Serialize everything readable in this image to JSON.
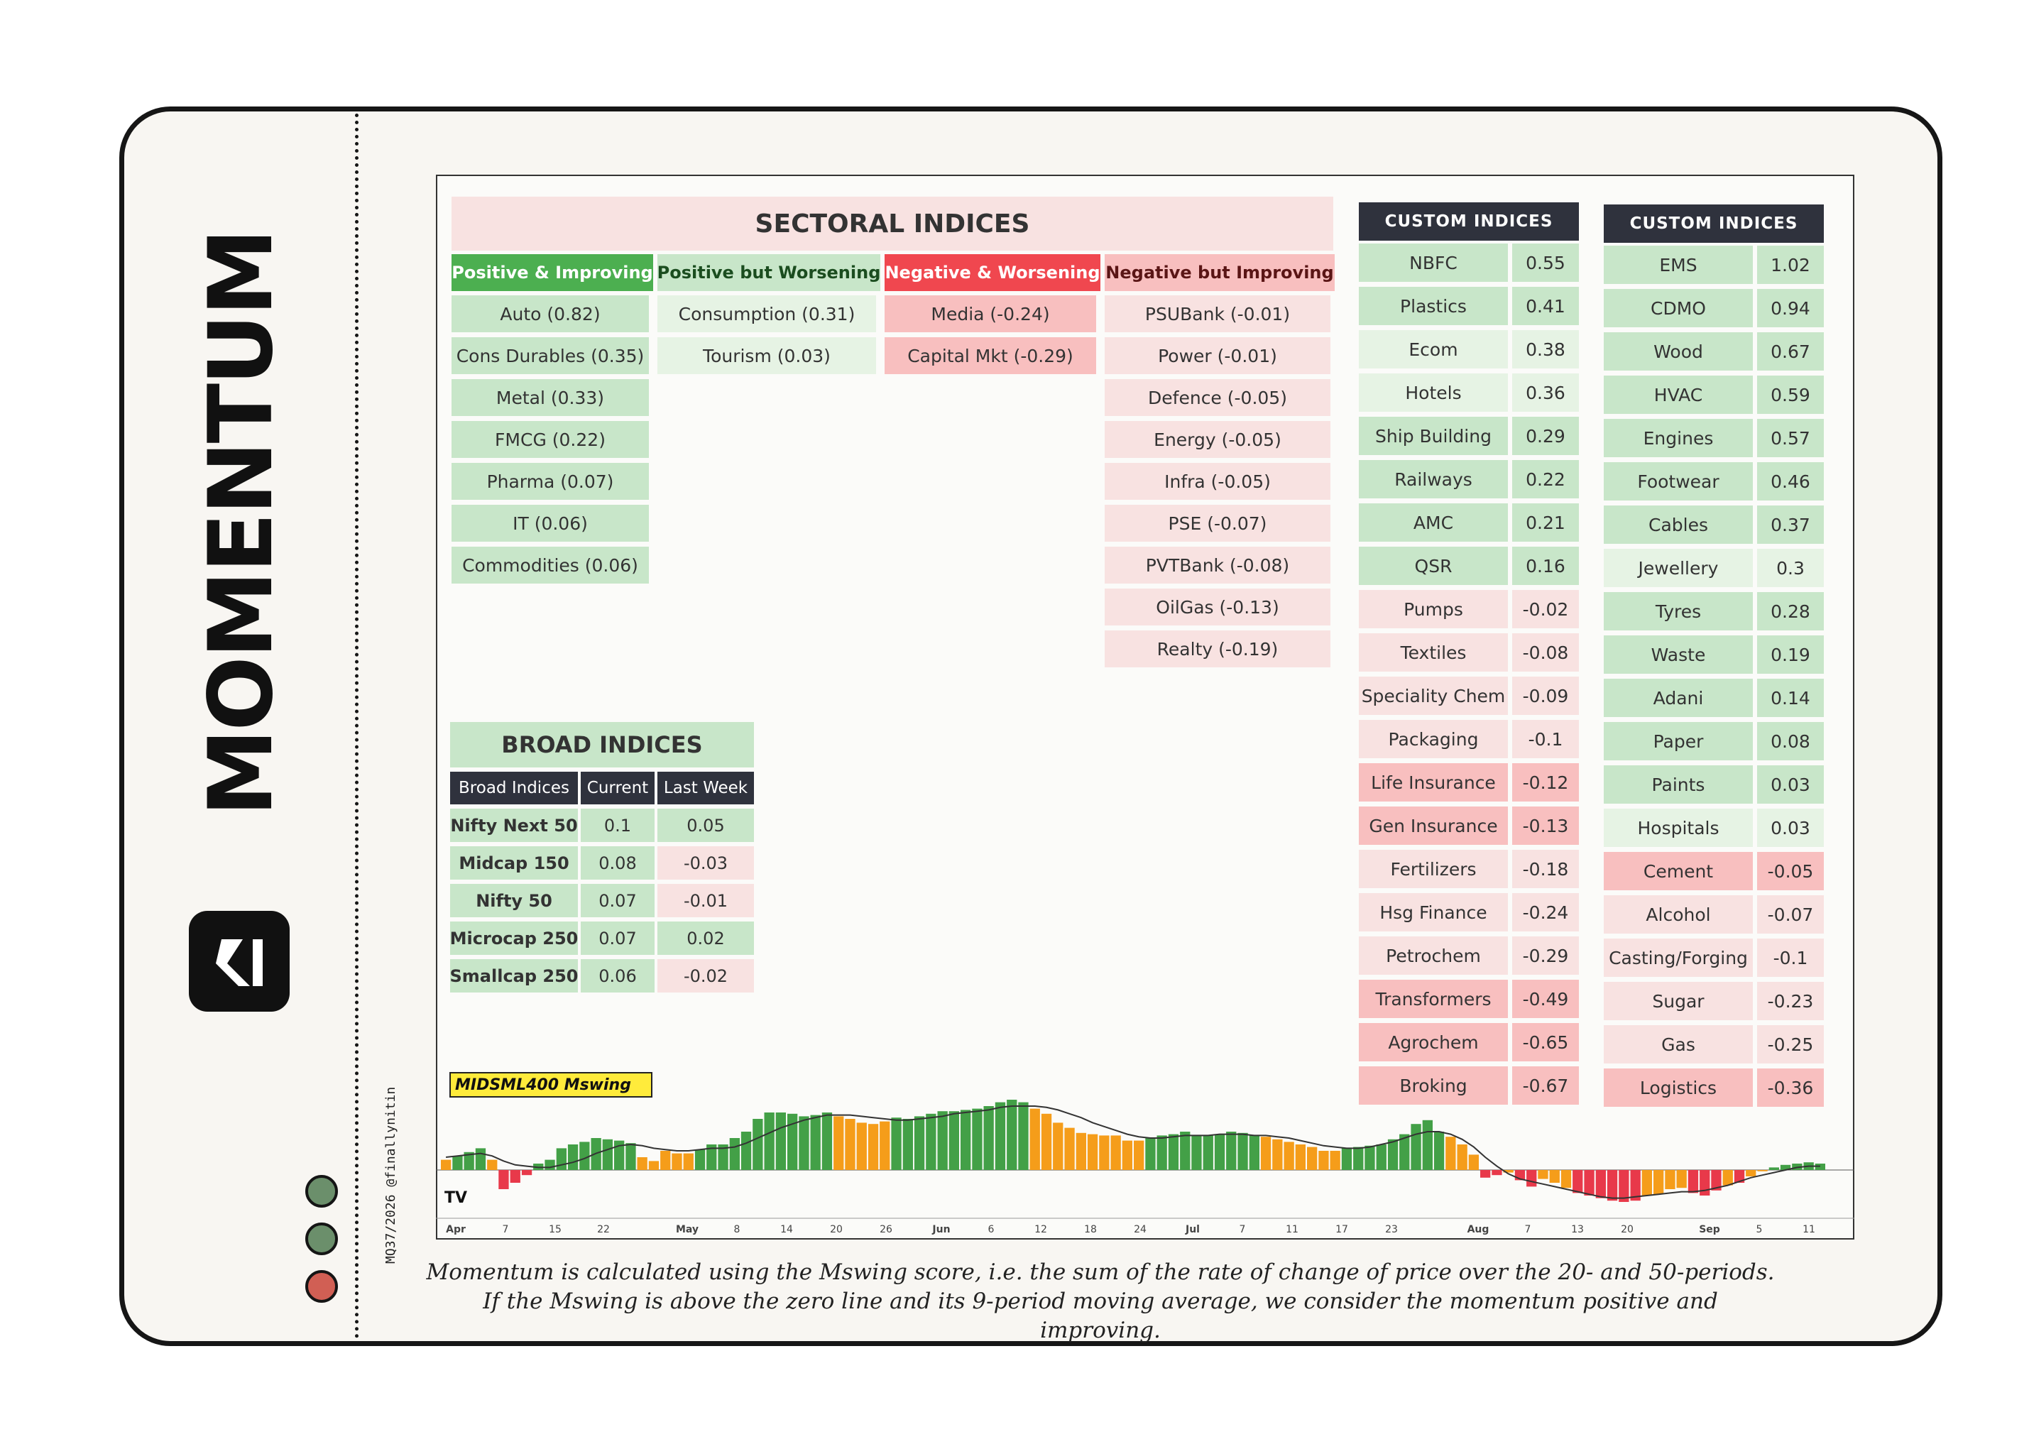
{
  "brand": {
    "title": "MOMENTUM",
    "credit": "MQ37/2026 @finallynitin"
  },
  "colors": {
    "green": "#c8e6c9",
    "light_green": "#e6f3e4",
    "red": "#f8bfbf",
    "light_red": "#f8e2e1",
    "dark": "#2f323d",
    "dot_green": "#6b8f6b",
    "dot_red": "#d15f54"
  },
  "sectoral": {
    "title": "SECTORAL INDICES",
    "columns": [
      {
        "label": "Positive & Improving",
        "color": "#4caf50",
        "items": [
          "Auto (0.82)",
          "Cons Durables (0.35)",
          "Metal (0.33)",
          "FMCG (0.22)",
          "Pharma (0.07)",
          "IT (0.06)",
          "Commodities (0.06)"
        ]
      },
      {
        "label": "Positive but Worsening",
        "color": "#c8e6c9",
        "items": [
          "Consumption (0.31)",
          "Tourism (0.03)"
        ]
      },
      {
        "label": "Negative & Worsening",
        "color": "#f0474f",
        "items": [
          "Media (-0.24)",
          "Capital Mkt (-0.29)"
        ]
      },
      {
        "label": "Negative but Improving",
        "color": "#f8bfbf",
        "items": [
          "PSUBank (-0.01)",
          "Power (-0.01)",
          "Defence (-0.05)",
          "Energy (-0.05)",
          "Infra (-0.05)",
          "PSE (-0.07)",
          "PVTBank (-0.08)",
          "OilGas (-0.13)",
          "Realty (-0.19)"
        ]
      }
    ]
  },
  "broad": {
    "title": "BROAD INDICES",
    "headers": [
      "Broad Indices",
      "Current",
      "Last Week"
    ],
    "rows": [
      {
        "name": "Nifty Next 50",
        "current": "0.1",
        "last": "0.05"
      },
      {
        "name": "Midcap 150",
        "current": "0.08",
        "last": "-0.03"
      },
      {
        "name": "Nifty 50",
        "current": "0.07",
        "last": "-0.01"
      },
      {
        "name": "Microcap 250",
        "current": "0.07",
        "last": "0.02"
      },
      {
        "name": "Smallcap 250",
        "current": "0.06",
        "last": "-0.02"
      }
    ]
  },
  "custom1": {
    "title": "CUSTOM INDICES",
    "rows": [
      {
        "name": "NBFC",
        "value": "0.55",
        "shade": "g"
      },
      {
        "name": "Plastics",
        "value": "0.41",
        "shade": "g"
      },
      {
        "name": "Ecom",
        "value": "0.38",
        "shade": "lg"
      },
      {
        "name": "Hotels",
        "value": "0.36",
        "shade": "lg"
      },
      {
        "name": "Ship Building",
        "value": "0.29",
        "shade": "g"
      },
      {
        "name": "Railways",
        "value": "0.22",
        "shade": "g"
      },
      {
        "name": "AMC",
        "value": "0.21",
        "shade": "g"
      },
      {
        "name": "QSR",
        "value": "0.16",
        "shade": "g"
      },
      {
        "name": "Pumps",
        "value": "-0.02",
        "shade": "lr"
      },
      {
        "name": "Textiles",
        "value": "-0.08",
        "shade": "lr"
      },
      {
        "name": "Speciality Chem",
        "value": "-0.09",
        "shade": "lr"
      },
      {
        "name": "Packaging",
        "value": "-0.1",
        "shade": "lr"
      },
      {
        "name": "Life Insurance",
        "value": "-0.12",
        "shade": "r"
      },
      {
        "name": "Gen Insurance",
        "value": "-0.13",
        "shade": "r"
      },
      {
        "name": "Fertilizers",
        "value": "-0.18",
        "shade": "lr"
      },
      {
        "name": "Hsg Finance",
        "value": "-0.24",
        "shade": "lr"
      },
      {
        "name": "Petrochem",
        "value": "-0.29",
        "shade": "lr"
      },
      {
        "name": "Transformers",
        "value": "-0.49",
        "shade": "r"
      },
      {
        "name": "Agrochem",
        "value": "-0.65",
        "shade": "r"
      },
      {
        "name": "Broking",
        "value": "-0.67",
        "shade": "r"
      }
    ]
  },
  "custom2": {
    "title": "CUSTOM INDICES",
    "rows": [
      {
        "name": "EMS",
        "value": "1.02",
        "shade": "g"
      },
      {
        "name": "CDMO",
        "value": "0.94",
        "shade": "g"
      },
      {
        "name": "Wood",
        "value": "0.67",
        "shade": "g"
      },
      {
        "name": "HVAC",
        "value": "0.59",
        "shade": "g"
      },
      {
        "name": "Engines",
        "value": "0.57",
        "shade": "g"
      },
      {
        "name": "Footwear",
        "value": "0.46",
        "shade": "g"
      },
      {
        "name": "Cables",
        "value": "0.37",
        "shade": "g"
      },
      {
        "name": "Jewellery",
        "value": "0.3",
        "shade": "lg"
      },
      {
        "name": "Tyres",
        "value": "0.28",
        "shade": "g"
      },
      {
        "name": "Waste",
        "value": "0.19",
        "shade": "g"
      },
      {
        "name": "Adani",
        "value": "0.14",
        "shade": "g"
      },
      {
        "name": "Paper",
        "value": "0.08",
        "shade": "g"
      },
      {
        "name": "Paints",
        "value": "0.03",
        "shade": "g"
      },
      {
        "name": "Hospitals",
        "value": "0.03",
        "shade": "lg"
      },
      {
        "name": "Cement",
        "value": "-0.05",
        "shade": "r"
      },
      {
        "name": "Alcohol",
        "value": "-0.07",
        "shade": "lr"
      },
      {
        "name": "Casting/Forging",
        "value": "-0.1",
        "shade": "lr"
      },
      {
        "name": "Sugar",
        "value": "-0.23",
        "shade": "lr"
      },
      {
        "name": "Gas",
        "value": "-0.25",
        "shade": "lr"
      },
      {
        "name": "Logistics",
        "value": "-0.36",
        "shade": "r"
      }
    ]
  },
  "chart_label": "MIDSML400 Mswing",
  "chart_data": {
    "type": "bar",
    "ticks": [
      "Apr",
      "7",
      "15",
      "22",
      "May",
      "8",
      "14",
      "20",
      "26",
      "Jun",
      "6",
      "12",
      "18",
      "24",
      "Jul",
      "7",
      "11",
      "17",
      "23",
      "Aug",
      "7",
      "13",
      "20",
      "Sep",
      "5",
      "11"
    ],
    "values": [
      0.08,
      0.11,
      0.14,
      0.17,
      0.08,
      -0.15,
      -0.1,
      -0.04,
      0.05,
      0.08,
      0.17,
      0.2,
      0.22,
      0.25,
      0.24,
      0.23,
      0.21,
      0.1,
      0.07,
      0.15,
      0.13,
      0.13,
      0.16,
      0.2,
      0.2,
      0.25,
      0.3,
      0.4,
      0.45,
      0.45,
      0.44,
      0.42,
      0.43,
      0.45,
      0.42,
      0.4,
      0.37,
      0.36,
      0.38,
      0.41,
      0.4,
      0.42,
      0.44,
      0.46,
      0.46,
      0.47,
      0.48,
      0.5,
      0.53,
      0.55,
      0.53,
      0.48,
      0.44,
      0.37,
      0.33,
      0.29,
      0.28,
      0.27,
      0.27,
      0.23,
      0.23,
      0.25,
      0.27,
      0.28,
      0.3,
      0.27,
      0.27,
      0.28,
      0.3,
      0.29,
      0.27,
      0.26,
      0.24,
      0.22,
      0.2,
      0.18,
      0.15,
      0.15,
      0.17,
      0.18,
      0.19,
      0.2,
      0.24,
      0.28,
      0.36,
      0.39,
      0.3,
      0.26,
      0.2,
      0.12,
      -0.06,
      -0.04,
      -0.02,
      -0.08,
      -0.13,
      -0.07,
      -0.1,
      -0.14,
      -0.18,
      -0.2,
      -0.22,
      -0.24,
      -0.25,
      -0.24,
      -0.2,
      -0.19,
      -0.15,
      -0.14,
      -0.18,
      -0.2,
      -0.16,
      -0.12,
      -0.1,
      -0.05,
      -0.01,
      0.02,
      0.04,
      0.05,
      0.06,
      0.05
    ],
    "ma": [
      0.1,
      0.11,
      0.12,
      0.13,
      0.11,
      0.07,
      0.04,
      0.03,
      0.02,
      0.02,
      0.04,
      0.06,
      0.09,
      0.13,
      0.16,
      0.19,
      0.2,
      0.19,
      0.17,
      0.16,
      0.15,
      0.15,
      0.16,
      0.17,
      0.17,
      0.18,
      0.21,
      0.25,
      0.29,
      0.33,
      0.36,
      0.39,
      0.41,
      0.43,
      0.43,
      0.43,
      0.42,
      0.41,
      0.4,
      0.39,
      0.39,
      0.4,
      0.41,
      0.42,
      0.44,
      0.45,
      0.46,
      0.47,
      0.49,
      0.5,
      0.5,
      0.5,
      0.49,
      0.47,
      0.44,
      0.41,
      0.37,
      0.34,
      0.31,
      0.28,
      0.26,
      0.25,
      0.25,
      0.26,
      0.27,
      0.27,
      0.27,
      0.28,
      0.28,
      0.28,
      0.27,
      0.27,
      0.26,
      0.25,
      0.23,
      0.21,
      0.19,
      0.18,
      0.17,
      0.17,
      0.18,
      0.2,
      0.22,
      0.25,
      0.28,
      0.3,
      0.3,
      0.28,
      0.24,
      0.18,
      0.1,
      0.03,
      -0.03,
      -0.07,
      -0.09,
      -0.11,
      -0.13,
      -0.15,
      -0.17,
      -0.19,
      -0.21,
      -0.22,
      -0.22,
      -0.21,
      -0.2,
      -0.19,
      -0.18,
      -0.17,
      -0.17,
      -0.16,
      -0.14,
      -0.12,
      -0.09,
      -0.06,
      -0.04,
      -0.02,
      0.0,
      0.02,
      0.03,
      0.03
    ],
    "ylim": [
      -0.3,
      0.6
    ]
  },
  "footnote": {
    "line1": "Momentum is calculated using the Mswing score, i.e. the sum of the rate of change of price over the 20- and 50-periods.",
    "line2": "If the Mswing is above the zero line and its 9-period moving average, we consider the momentum positive and improving."
  }
}
